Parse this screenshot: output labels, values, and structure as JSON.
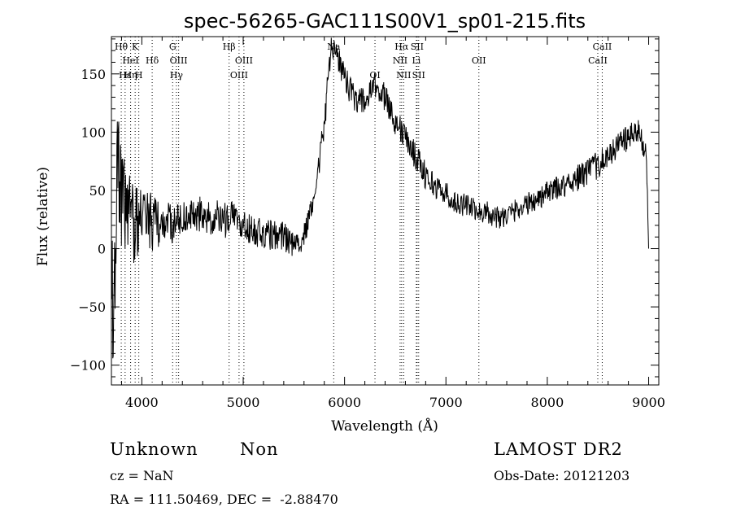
{
  "chart_data": {
    "type": "line",
    "title": "spec-56265-GAC111S00V1_sp01-215.fits",
    "xlabel": "Wavelength (Å)",
    "ylabel": "Flux (relative)",
    "xlim": [
      3700,
      9100
    ],
    "ylim": [
      -117,
      182
    ],
    "xticks": [
      4000,
      5000,
      6000,
      7000,
      8000,
      9000
    ],
    "xtick_labels": [
      "4000",
      "5000",
      "6000",
      "7000",
      "8000",
      "9000"
    ],
    "yticks": [
      -100,
      -50,
      0,
      50,
      100,
      150
    ],
    "ytick_labels": [
      "−100",
      "−50",
      "0",
      "50",
      "100",
      "150"
    ],
    "grid": false,
    "legend": "none",
    "series": [
      {
        "x": [
          3700,
          3730,
          3760,
          3800,
          3850,
          3900,
          3950,
          4000,
          4100,
          4200,
          4300,
          4400,
          4500,
          4600,
          4700,
          4800,
          4900,
          5000,
          5100,
          5200,
          5300,
          5400,
          5500,
          5560,
          5600,
          5650,
          5700,
          5750,
          5800,
          5850,
          5880,
          5900,
          5950,
          6000,
          6100,
          6200,
          6300,
          6400,
          6500,
          6600,
          6700,
          6800,
          6900,
          7000,
          7100,
          7200,
          7300,
          7400,
          7500,
          7600,
          7700,
          7800,
          7900,
          8000,
          8100,
          8200,
          8300,
          8400,
          8500,
          8600,
          8700,
          8800,
          8850,
          8900,
          8950,
          8980,
          9000
        ],
        "y": [
          -40,
          -60,
          70,
          40,
          30,
          25,
          20,
          25,
          22,
          20,
          22,
          25,
          28,
          30,
          27,
          25,
          26,
          20,
          16,
          14,
          12,
          10,
          5,
          5,
          12,
          25,
          48,
          75,
          105,
          160,
          175,
          170,
          160,
          145,
          130,
          125,
          140,
          130,
          110,
          95,
          80,
          63,
          53,
          48,
          38,
          38,
          32,
          32,
          27,
          28,
          34,
          38,
          43,
          48,
          52,
          56,
          61,
          66,
          72,
          78,
          90,
          95,
          97,
          100,
          90,
          75,
          0
        ],
        "noise": [
          60,
          60,
          50,
          45,
          40,
          38,
          35,
          30,
          25,
          20,
          18,
          16,
          16,
          16,
          16,
          16,
          16,
          14,
          14,
          14,
          14,
          14,
          12,
          10,
          10,
          10,
          10,
          12,
          12,
          12,
          12,
          12,
          12,
          12,
          12,
          12,
          12,
          12,
          12,
          12,
          12,
          12,
          10,
          10,
          10,
          10,
          10,
          10,
          10,
          10,
          10,
          10,
          10,
          10,
          10,
          10,
          12,
          12,
          12,
          12,
          12,
          12,
          12,
          12,
          12,
          12,
          0
        ]
      }
    ],
    "emission_lines": [
      {
        "label": "Hθ",
        "x": 3797,
        "row": 0
      },
      {
        "label": "K",
        "x": 3934,
        "row": 0
      },
      {
        "label": "HeI",
        "x": 3889,
        "row": 1
      },
      {
        "label": "Hδ",
        "x": 4102,
        "row": 1
      },
      {
        "label": "Hε",
        "x": 3835,
        "row": 2
      },
      {
        "label": "Hη",
        "x": 3889,
        "row": 2
      },
      {
        "label": "H",
        "x": 3970,
        "row": 2
      },
      {
        "label": "G",
        "x": 4304,
        "row": 0
      },
      {
        "label": "OIII",
        "x": 4363,
        "row": 1
      },
      {
        "label": "Hγ",
        "x": 4341,
        "row": 2
      },
      {
        "label": "Hβ",
        "x": 4861,
        "row": 0
      },
      {
        "label": "OIII",
        "x": 5007,
        "row": 1
      },
      {
        "label": "OIII",
        "x": 4959,
        "row": 2
      },
      {
        "label": "Na",
        "x": 5893,
        "row": 0
      },
      {
        "label": "OI",
        "x": 6300,
        "row": 2
      },
      {
        "label": "Hα",
        "x": 6563,
        "row": 0
      },
      {
        "label": "SII",
        "x": 6716,
        "row": 0
      },
      {
        "label": "NII",
        "x": 6548,
        "row": 1
      },
      {
        "label": "Li",
        "x": 6708,
        "row": 1
      },
      {
        "label": "NII",
        "x": 6583,
        "row": 2
      },
      {
        "label": "SII",
        "x": 6731,
        "row": 2
      },
      {
        "label": "OII",
        "x": 7325,
        "row": 1
      },
      {
        "label": "CaII",
        "x": 8542,
        "row": 0
      },
      {
        "label": "CaII",
        "x": 8498,
        "row": 1
      }
    ]
  },
  "info": {
    "class_label": "Unknown",
    "subclass_label": "Non",
    "survey": "LAMOST DR2",
    "cz": "cz = NaN",
    "obs_date": "Obs-Date: 20121203",
    "coords": "RA = 111.50469, DEC =  -2.88470"
  }
}
